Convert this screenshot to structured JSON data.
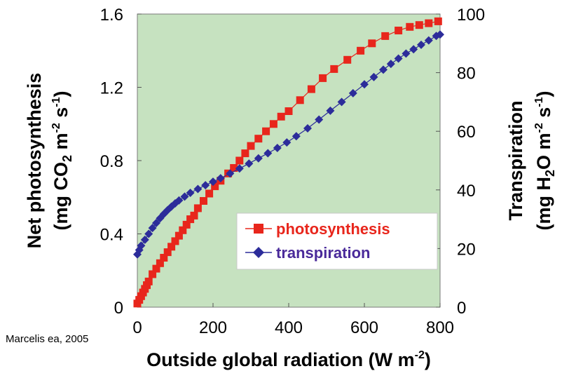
{
  "source_note": "Marcelis ea, 2005",
  "chart_data": {
    "type": "scatter",
    "x_axis": {
      "label_main": "Outside global radiation (W m",
      "label_sup": "-2",
      "label_end": ")",
      "ticks": [
        "0",
        "200",
        "400",
        "600",
        "800"
      ],
      "range": [
        0,
        800
      ]
    },
    "y_left": {
      "label_line1": "Net photosynthesis",
      "label_line2_a": "(mg CO",
      "label_line2_sub": "2",
      "label_line2_b": " m",
      "label_line2_sup1": "-2",
      "label_line2_c": " s",
      "label_line2_sup2": "-1",
      "label_line2_d": ")",
      "ticks": [
        "0",
        "0.4",
        "0.8",
        "1.2",
        "1.6"
      ],
      "range": [
        0,
        1.6
      ]
    },
    "y_right": {
      "label_line1": "Transpiration",
      "label_line2_a": "(mg H",
      "label_line2_sub": "2",
      "label_line2_b": "O m",
      "label_line2_sup1": "-2",
      "label_line2_c": " s",
      "label_line2_sup2": "-1",
      "label_line2_d": ")",
      "ticks": [
        "0",
        "20",
        "40",
        "60",
        "80",
        "100"
      ],
      "range": [
        0,
        100
      ]
    },
    "plot_background": "#c6e2c0",
    "legend_position": "bottom-right",
    "series": [
      {
        "name": "photosynthesis",
        "axis": "left",
        "color": "#e8261c",
        "marker": "square",
        "points": [
          [
            0,
            0.02
          ],
          [
            5,
            0.04
          ],
          [
            10,
            0.06
          ],
          [
            15,
            0.08
          ],
          [
            20,
            0.1
          ],
          [
            25,
            0.12
          ],
          [
            30,
            0.14
          ],
          [
            40,
            0.18
          ],
          [
            50,
            0.21
          ],
          [
            60,
            0.24
          ],
          [
            70,
            0.27
          ],
          [
            80,
            0.3
          ],
          [
            90,
            0.33
          ],
          [
            100,
            0.36
          ],
          [
            110,
            0.39
          ],
          [
            120,
            0.42
          ],
          [
            130,
            0.45
          ],
          [
            140,
            0.48
          ],
          [
            150,
            0.5
          ],
          [
            160,
            0.54
          ],
          [
            175,
            0.58
          ],
          [
            190,
            0.62
          ],
          [
            205,
            0.66
          ],
          [
            220,
            0.69
          ],
          [
            240,
            0.73
          ],
          [
            255,
            0.76
          ],
          [
            270,
            0.8
          ],
          [
            285,
            0.84
          ],
          [
            300,
            0.88
          ],
          [
            320,
            0.92
          ],
          [
            340,
            0.96
          ],
          [
            360,
            1.0
          ],
          [
            380,
            1.04
          ],
          [
            400,
            1.07
          ],
          [
            430,
            1.13
          ],
          [
            460,
            1.19
          ],
          [
            490,
            1.25
          ],
          [
            520,
            1.3
          ],
          [
            555,
            1.35
          ],
          [
            590,
            1.4
          ],
          [
            620,
            1.44
          ],
          [
            655,
            1.48
          ],
          [
            690,
            1.51
          ],
          [
            720,
            1.53
          ],
          [
            745,
            1.54
          ],
          [
            770,
            1.55
          ],
          [
            795,
            1.56
          ]
        ]
      },
      {
        "name": "transpiration",
        "axis": "right",
        "color": "#2c2c9a",
        "marker": "diamond",
        "points": [
          [
            0,
            18.0
          ],
          [
            5,
            19.5
          ],
          [
            10,
            21.0
          ],
          [
            20,
            23.0
          ],
          [
            30,
            25.0
          ],
          [
            40,
            27.0
          ],
          [
            50,
            28.7
          ],
          [
            60,
            30.3
          ],
          [
            70,
            31.8
          ],
          [
            80,
            33.1
          ],
          [
            90,
            34.3
          ],
          [
            100,
            35.4
          ],
          [
            110,
            36.4
          ],
          [
            125,
            37.7
          ],
          [
            140,
            39.0
          ],
          [
            160,
            40.3
          ],
          [
            180,
            41.6
          ],
          [
            200,
            42.8
          ],
          [
            220,
            44.0
          ],
          [
            245,
            45.6
          ],
          [
            270,
            47.3
          ],
          [
            295,
            49.0
          ],
          [
            320,
            50.8
          ],
          [
            345,
            52.5
          ],
          [
            370,
            54.3
          ],
          [
            395,
            56.2
          ],
          [
            420,
            58.3
          ],
          [
            450,
            61.0
          ],
          [
            480,
            64.0
          ],
          [
            510,
            67.0
          ],
          [
            540,
            70.0
          ],
          [
            570,
            73.0
          ],
          [
            600,
            76.0
          ],
          [
            625,
            78.5
          ],
          [
            650,
            81.0
          ],
          [
            670,
            83.0
          ],
          [
            690,
            84.8
          ],
          [
            710,
            86.5
          ],
          [
            730,
            88.0
          ],
          [
            750,
            89.5
          ],
          [
            770,
            91.0
          ],
          [
            790,
            92.5
          ],
          [
            800,
            93.0
          ]
        ]
      }
    ]
  }
}
